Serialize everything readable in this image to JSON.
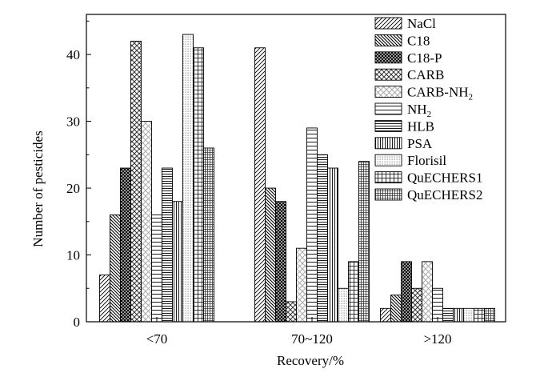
{
  "chart_data": {
    "type": "bar",
    "title": "",
    "xlabel": "Recovery/%",
    "ylabel": "Number of pesticides",
    "ylim": [
      0,
      46
    ],
    "yticks": [
      0,
      10,
      20,
      30,
      40
    ],
    "categories": [
      "<70",
      "70~120",
      ">120"
    ],
    "legend_position": "top-right",
    "grid": false,
    "series": [
      {
        "name": "NaCl",
        "base": "NaCl",
        "sub": "",
        "pattern": "diag-right",
        "values": [
          7,
          41,
          2
        ]
      },
      {
        "name": "C18",
        "base": "C18",
        "sub": "",
        "pattern": "diag-left",
        "values": [
          16,
          20,
          4
        ]
      },
      {
        "name": "C18-P",
        "base": "C18-P",
        "sub": "",
        "pattern": "dense-cross",
        "values": [
          23,
          18,
          9
        ]
      },
      {
        "name": "CARB",
        "base": "CARB",
        "sub": "",
        "pattern": "diag-cross",
        "values": [
          42,
          3,
          5
        ]
      },
      {
        "name": "CARB-NH2",
        "base": "CARB-NH",
        "sub": "2",
        "pattern": "light-cross",
        "values": [
          30,
          11,
          9
        ]
      },
      {
        "name": "NH2",
        "base": "NH",
        "sub": "2",
        "pattern": "horizontal",
        "values": [
          16,
          29,
          5
        ]
      },
      {
        "name": "HLB",
        "base": "HLB",
        "sub": "",
        "pattern": "horizontal-dense",
        "values": [
          23,
          25,
          2
        ]
      },
      {
        "name": "PSA",
        "base": "PSA",
        "sub": "",
        "pattern": "vertical",
        "values": [
          18,
          23,
          2
        ]
      },
      {
        "name": "Florisil",
        "base": "Florisil",
        "sub": "",
        "pattern": "dots",
        "values": [
          43,
          5,
          2
        ]
      },
      {
        "name": "QuECHERS1",
        "base": "QuECHERS1",
        "sub": "",
        "pattern": "grid",
        "values": [
          41,
          9,
          2
        ]
      },
      {
        "name": "QuECHERS2",
        "base": "QuECHERS2",
        "sub": "",
        "pattern": "grid-dense",
        "values": [
          26,
          24,
          2
        ]
      }
    ]
  }
}
